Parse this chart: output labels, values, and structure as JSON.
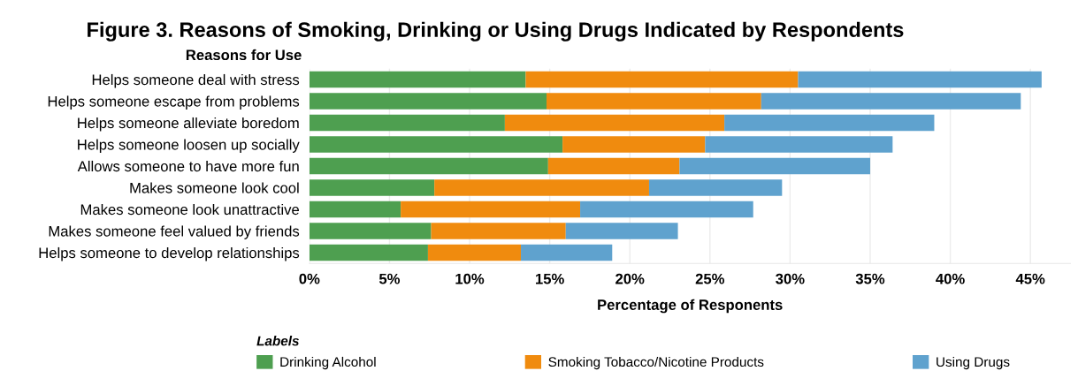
{
  "chart_data": {
    "type": "bar",
    "orientation": "horizontal",
    "stacked": true,
    "title": "Figure 3. Reasons of Smoking, Drinking or Using Drugs Indicated by Respondents",
    "xlabel": "Percentage of Responents",
    "ylabel": "Reasons for Use",
    "legend_title": "Labels",
    "legend": "bottom",
    "grid": "x",
    "categories": [
      "Helps someone deal with stress",
      "Helps someone escape from problems",
      "Helps someone alleviate boredom",
      "Helps someone loosen up socially",
      "Allows someone to have more fun",
      "Makes someone look cool",
      "Makes someone look unattractive",
      "Makes someone feel valued by friends",
      "Helps someone to develop relationships"
    ],
    "series": [
      {
        "name": "Drinking Alcohol",
        "color": "#4e9f50",
        "values": [
          13.5,
          14.8,
          12.2,
          15.8,
          14.9,
          7.8,
          5.7,
          7.6,
          7.4
        ]
      },
      {
        "name": "Smoking Tobacco/Nicotine Products",
        "color": "#f08b0e",
        "values": [
          17.0,
          13.4,
          13.7,
          8.9,
          8.2,
          13.4,
          11.2,
          8.4,
          5.8
        ]
      },
      {
        "name": "Using Drugs",
        "color": "#5fa2ce",
        "values": [
          15.2,
          16.2,
          13.1,
          11.7,
          11.9,
          8.3,
          10.8,
          7.0,
          5.7
        ]
      }
    ],
    "xlim": [
      0,
      47.5
    ],
    "xticks": [
      {
        "value": 0,
        "label": "0%"
      },
      {
        "value": 5,
        "label": "5%"
      },
      {
        "value": 10,
        "label": "10%"
      },
      {
        "value": 15,
        "label": "15%"
      },
      {
        "value": 20,
        "label": "20%"
      },
      {
        "value": 25,
        "label": "25%"
      },
      {
        "value": 30,
        "label": "30%"
      },
      {
        "value": 35,
        "label": "35%"
      },
      {
        "value": 40,
        "label": "40%"
      },
      {
        "value": 45,
        "label": "45%"
      }
    ]
  }
}
